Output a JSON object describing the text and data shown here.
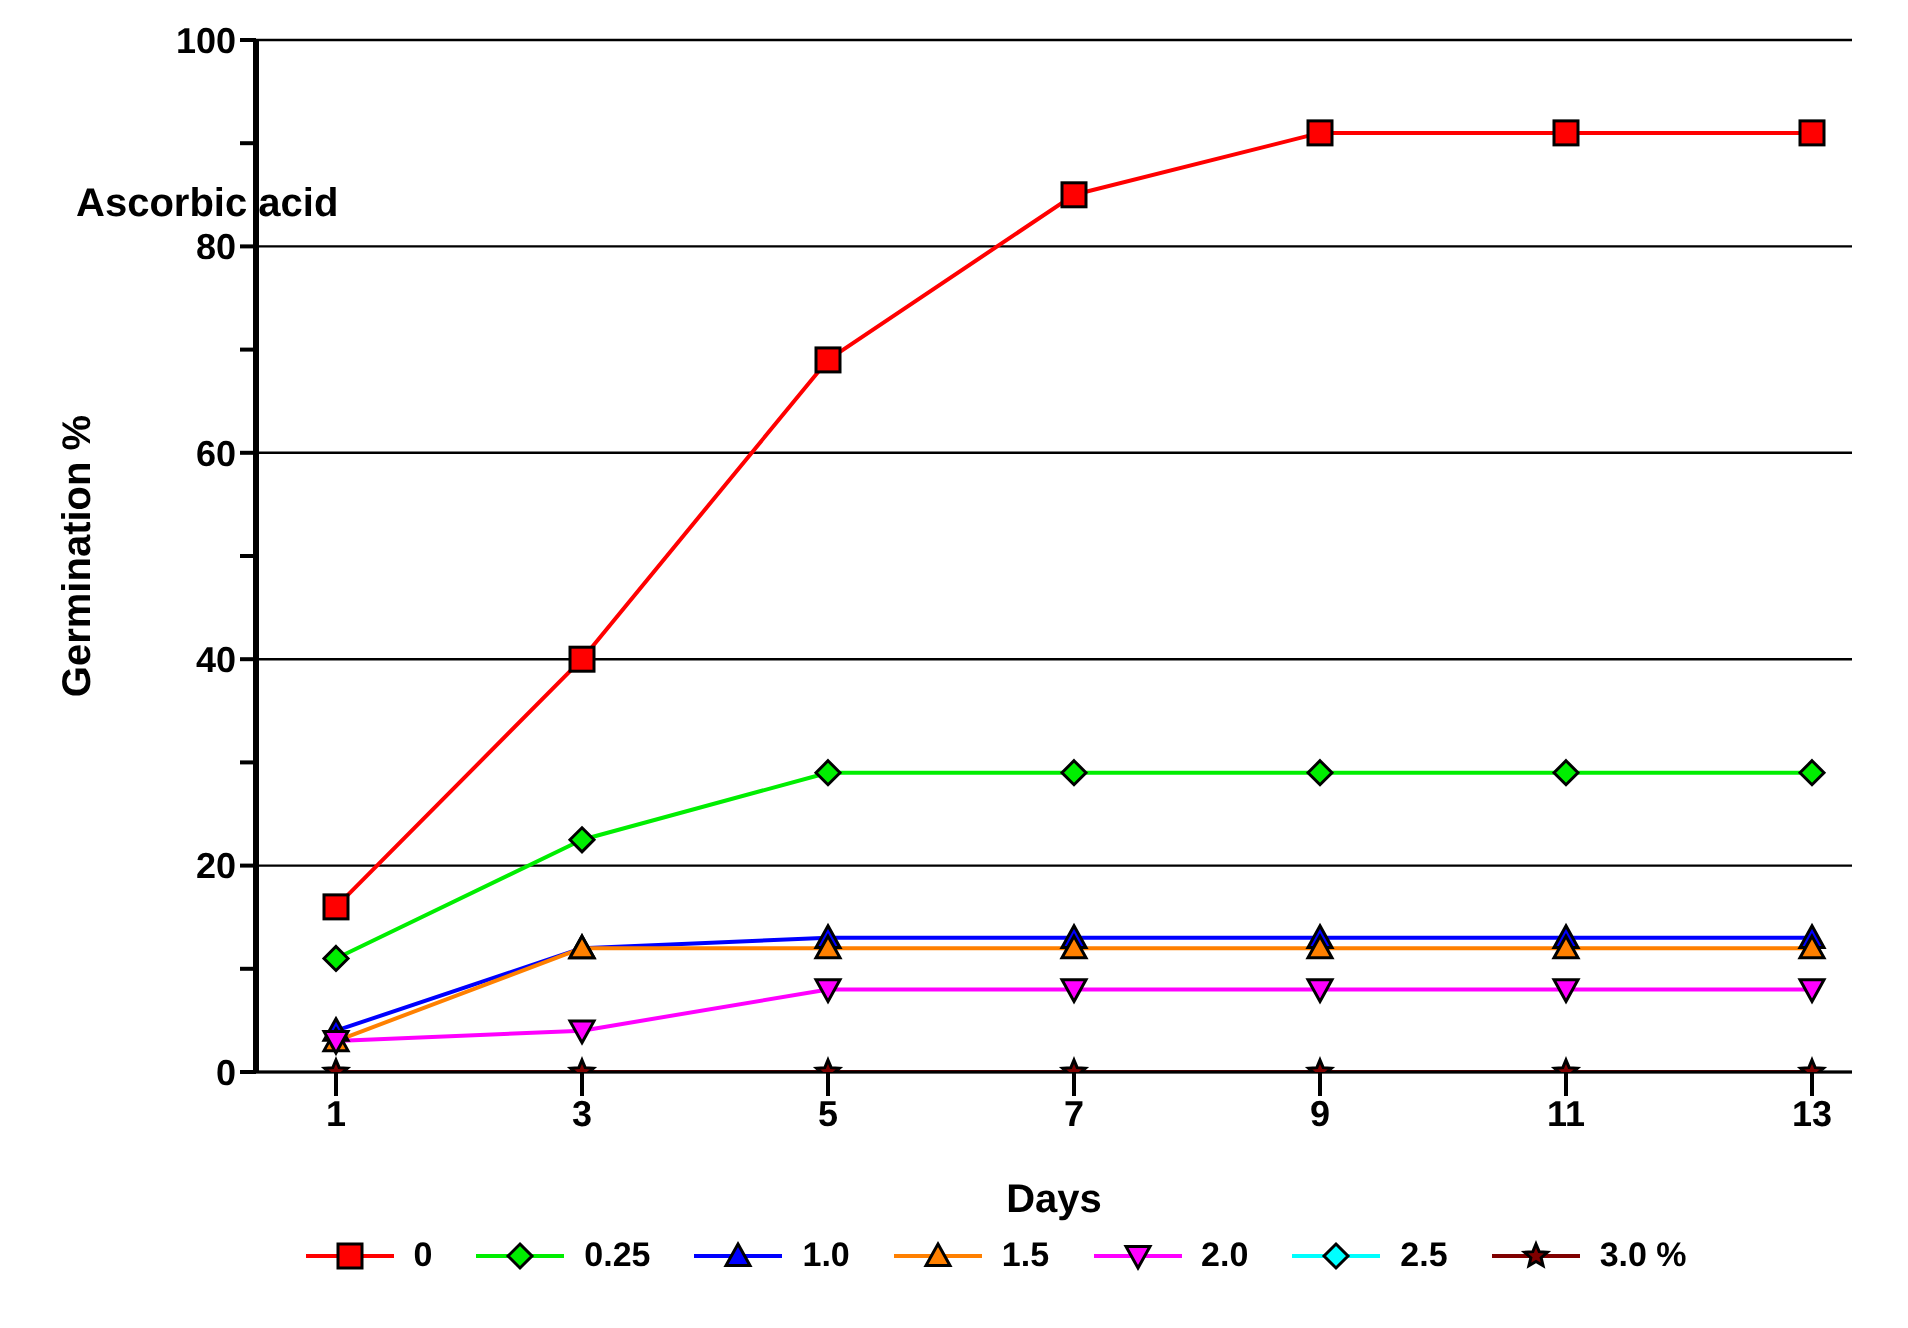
{
  "chart_data": {
    "type": "line",
    "xlabel": "Days",
    "ylabel": "Germination %",
    "annotations": [
      "Ascorbic acid"
    ],
    "categories": [
      "1",
      "3",
      "5",
      "7",
      "9",
      "11",
      "13"
    ],
    "ylim": [
      0,
      100
    ],
    "yticks": [
      0,
      {
        "value": 10,
        "label": null
      },
      20,
      {
        "value": 30,
        "label": null
      },
      40,
      {
        "value": 50,
        "label": null
      },
      60,
      {
        "value": 70,
        "label": null
      },
      80,
      {
        "value": 90,
        "label": null
      },
      100
    ],
    "grid": "y",
    "legend": "bottom",
    "line_style": "solid",
    "series": [
      {
        "name": "0",
        "color": "#ff0000",
        "marker": "square",
        "values": [
          16,
          40,
          69,
          85,
          91,
          91,
          91
        ]
      },
      {
        "name": "0.25",
        "color": "#00ee00",
        "marker": "diamond",
        "values": [
          11,
          22.5,
          29,
          29,
          29,
          29,
          29
        ]
      },
      {
        "name": "1.0",
        "color": "#0000ff",
        "marker": "triangle",
        "values": [
          4,
          12,
          13,
          13,
          13,
          13,
          13
        ]
      },
      {
        "name": "1.5",
        "color": "#ff8000",
        "marker": "triangle",
        "values": [
          3,
          12,
          12,
          12,
          12,
          12,
          12
        ]
      },
      {
        "name": "2.0",
        "color": "#ff00ff",
        "marker": "triangle-down",
        "values": [
          3,
          4,
          8,
          8,
          8,
          8,
          8
        ]
      },
      {
        "name": "2.5",
        "color": "#00ffff",
        "marker": "diamond",
        "values": [
          null,
          null,
          null,
          null,
          null,
          null,
          null
        ]
      },
      {
        "name": "3.0 %",
        "color": "#800000",
        "marker": "star",
        "values": [
          0,
          0,
          0,
          0,
          0,
          0,
          0
        ]
      }
    ]
  }
}
